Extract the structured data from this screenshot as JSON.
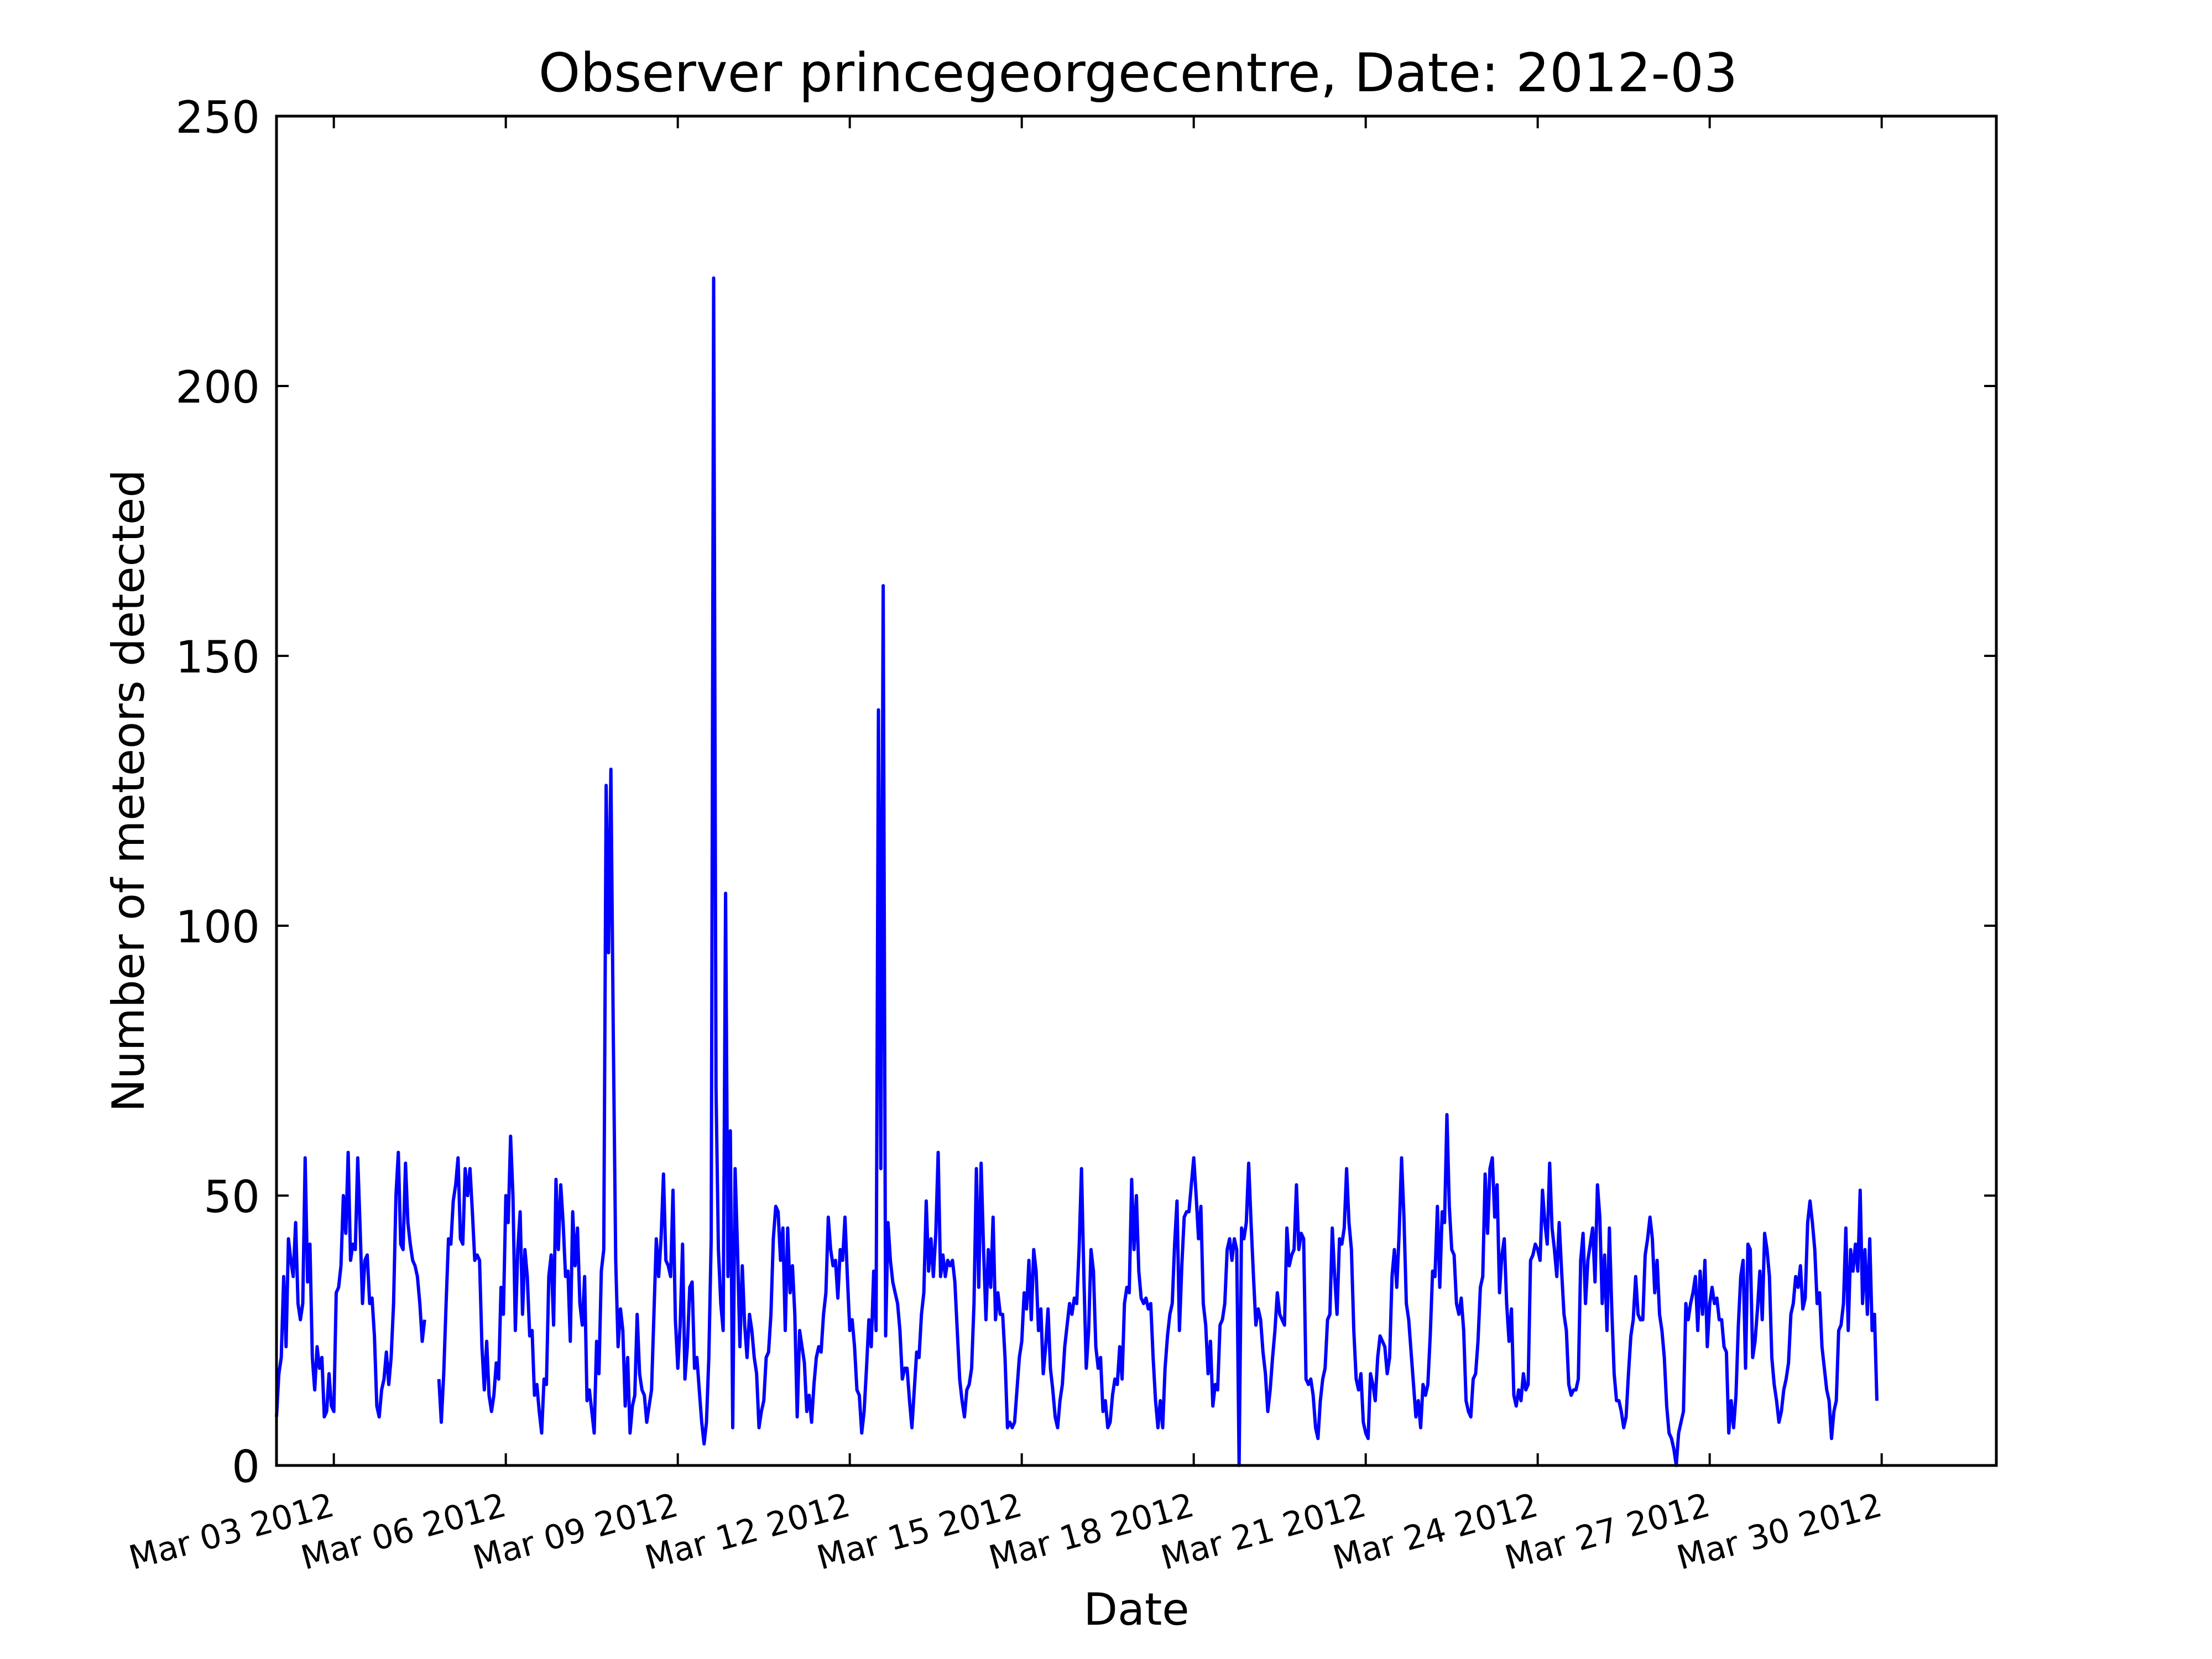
{
  "chart_data": {
    "type": "line",
    "title": "Observer princegeorgecentre, Date: 2012-03",
    "xlabel": "Date",
    "ylabel": "Number of meteors detected",
    "ylim": [
      0,
      250
    ],
    "xlim": [
      "2012-03-02T00:00",
      "2012-04-01T00:00"
    ],
    "yticks": [
      0,
      50,
      100,
      150,
      200,
      250
    ],
    "xticks": [
      {
        "date": "2012-03-03",
        "label": "Mar 03 2012"
      },
      {
        "date": "2012-03-06",
        "label": "Mar 06 2012"
      },
      {
        "date": "2012-03-09",
        "label": "Mar 09 2012"
      },
      {
        "date": "2012-03-12",
        "label": "Mar 12 2012"
      },
      {
        "date": "2012-03-15",
        "label": "Mar 15 2012"
      },
      {
        "date": "2012-03-18",
        "label": "Mar 18 2012"
      },
      {
        "date": "2012-03-21",
        "label": "Mar 21 2012"
      },
      {
        "date": "2012-03-24",
        "label": "Mar 24 2012"
      },
      {
        "date": "2012-03-27",
        "label": "Mar 27 2012"
      },
      {
        "date": "2012-03-30",
        "label": "Mar 30 2012"
      }
    ],
    "grid": false,
    "line_color": "#0000ff",
    "series": [
      {
        "segments": [
          {
            "start": "2012-03-02T00:00",
            "step_hours": 1,
            "values": [
              9,
              17,
              20,
              35,
              22,
              42,
              38,
              35,
              45,
              30,
              27,
              30,
              57,
              34,
              41,
              20,
              14,
              22,
              18,
              20,
              9,
              10,
              17,
              11,
              10,
              32,
              33,
              37,
              50,
              43,
              58,
              38,
              41,
              40,
              57,
              44,
              30,
              38,
              39,
              30,
              31,
              24,
              11,
              9,
              14,
              16,
              21,
              15,
              20,
              30,
              50,
              58,
              41,
              40,
              56,
              45,
              41,
              38,
              37,
              35,
              30,
              23,
              27
            ]
          },
          {
            "start": "2012-03-04T20:00",
            "step_hours": 1,
            "values": [
              16,
              8,
              17,
              30,
              42,
              41,
              49,
              52,
              57,
              42,
              41,
              55,
              50,
              55,
              47,
              38,
              39,
              38,
              22,
              14,
              23,
              13,
              10,
              13,
              19,
              16,
              33,
              28,
              50,
              45,
              61,
              50,
              25,
              40,
              47,
              28,
              40,
              35,
              24,
              25,
              13,
              15,
              10,
              6,
              16,
              15,
              35,
              39,
              26,
              53,
              40,
              52,
              45,
              35,
              36,
              23,
              47,
              37,
              44,
              30,
              26,
              35,
              12,
              14,
              10,
              6,
              23,
              17,
              36,
              40,
              126,
              95,
              129,
              80,
              38,
              22,
              29,
              25,
              11,
              20,
              6,
              11,
              13,
              28,
              17,
              14,
              13,
              8,
              11,
              14,
              28,
              42,
              35,
              42,
              54,
              38,
              37,
              35,
              51,
              27,
              18,
              26,
              41,
              16,
              22,
              33,
              34,
              18,
              20,
              14,
              8,
              4,
              8,
              20,
              42,
              220,
              70,
              40,
              30,
              25,
              106,
              35,
              62,
              7,
              55,
              40,
              22,
              37,
              26,
              20,
              28,
              25,
              20,
              17,
              7,
              10,
              12,
              20,
              21,
              28,
              42,
              48,
              47,
              38,
              44,
              25,
              44,
              32,
              37,
              28,
              9,
              25,
              22,
              19,
              10,
              13,
              8,
              15,
              20,
              22,
              21,
              28,
              32,
              46,
              40,
              37,
              38,
              31,
              40,
              38,
              46,
              35,
              25,
              27,
              22,
              14,
              13,
              6,
              10,
              18,
              27,
              22,
              36,
              25,
              140,
              55,
              163,
              24,
              45,
              38,
              34,
              32,
              30,
              25,
              16,
              18,
              18,
              12,
              7,
              14,
              21,
              20,
              28,
              32,
              49,
              36,
              42,
              35,
              43,
              58,
              35,
              39,
              35,
              38,
              37,
              38,
              34,
              25,
              16,
              12,
              9,
              14,
              15,
              18,
              30,
              55,
              33,
              56,
              40,
              27,
              40,
              33,
              46,
              27,
              32,
              28,
              28,
              20,
              7,
              8,
              7,
              8,
              14,
              20,
              23,
              32,
              29,
              38,
              27,
              40,
              36,
              25,
              29,
              17,
              22,
              29,
              18,
              14,
              9,
              7,
              12,
              15,
              22,
              26,
              30,
              28,
              31,
              30,
              40,
              55,
              35,
              18,
              25,
              40,
              36,
              22,
              18,
              20,
              10,
              12,
              7,
              8,
              13,
              16,
              15,
              22,
              16,
              30,
              33,
              32,
              53,
              40,
              50,
              36,
              31,
              30,
              31,
              29,
              30,
              20,
              12,
              7,
              12,
              7,
              18,
              24,
              28,
              30,
              41,
              49,
              25,
              37,
              46,
              47,
              47,
              52,
              57,
              50,
              42,
              48,
              30,
              26,
              17,
              23,
              11,
              15,
              14,
              26,
              27,
              30,
              40,
              42,
              38,
              42,
              40,
              0,
              44,
              42,
              45,
              56,
              45,
              35,
              26,
              29,
              27,
              21,
              17,
              10,
              14,
              20,
              25,
              32,
              28,
              27,
              26,
              44,
              37,
              39,
              40,
              52,
              40,
              43,
              42,
              16,
              15,
              16,
              13,
              7,
              5,
              12,
              16,
              18,
              27,
              28,
              44,
              35,
              28,
              42,
              41,
              44,
              55,
              45,
              40,
              25,
              16,
              14,
              17,
              8,
              6,
              5,
              17,
              15,
              12,
              20,
              24,
              23,
              22,
              17,
              20,
              35,
              40,
              33,
              43,
              57,
              46,
              30,
              27,
              21,
              15,
              9,
              12,
              7,
              15,
              13,
              15,
              24,
              36,
              35,
              48,
              33,
              47,
              45,
              65,
              48,
              40,
              39,
              30,
              28,
              31,
              25,
              12,
              10,
              9,
              16,
              17,
              23,
              33,
              35,
              54,
              43,
              55,
              57,
              46,
              52,
              32,
              39,
              42,
              30,
              23,
              29,
              13,
              11,
              14,
              12,
              17,
              14,
              15,
              38,
              39,
              41,
              40,
              38,
              51,
              45,
              41,
              56,
              44,
              40,
              35,
              45,
              36,
              28,
              25,
              15,
              13,
              14,
              14,
              16,
              38,
              43,
              30,
              38,
              41,
              44,
              34,
              52,
              46,
              30,
              39,
              25,
              44,
              29,
              17,
              12,
              12,
              10,
              7,
              9,
              17,
              24,
              27,
              35,
              28,
              27,
              27,
              39,
              42,
              46,
              42,
              32,
              38,
              28,
              25,
              20,
              11,
              6,
              5,
              3,
              0,
              6,
              8,
              10,
              30,
              27,
              30,
              32,
              35,
              25,
              36,
              28,
              38,
              22,
              30,
              33,
              30,
              31,
              27,
              27,
              22,
              21,
              6,
              12,
              7,
              13,
              26,
              35,
              38,
              18,
              41,
              40,
              20,
              23,
              29,
              36,
              27,
              43,
              40,
              35,
              20,
              15,
              12,
              8,
              10,
              14,
              16,
              19,
              28,
              30,
              35,
              33,
              37,
              29,
              31,
              45,
              49,
              45,
              40,
              30,
              32,
              22,
              18,
              14,
              12,
              5,
              10,
              12,
              25,
              26,
              30,
              44,
              25,
              40,
              36,
              41,
              36,
              51,
              30,
              40,
              28,
              42,
              25,
              28,
              12
            ]
          }
        ]
      }
    ]
  }
}
